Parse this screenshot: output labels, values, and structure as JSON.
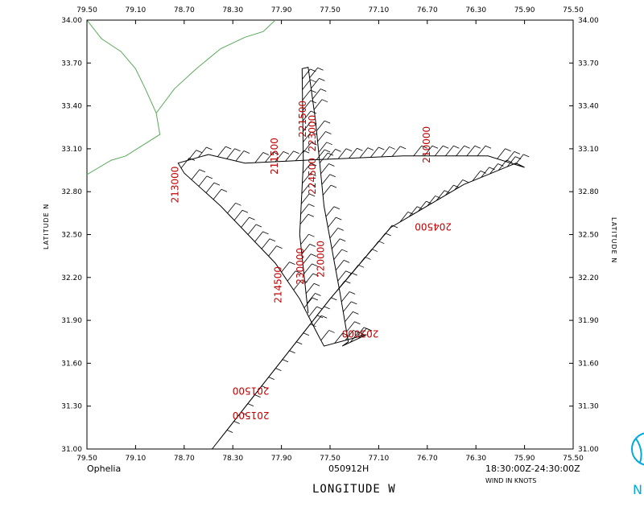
{
  "map": {
    "lon_ticks": [
      "79.50",
      "79.10",
      "78.70",
      "78.30",
      "77.90",
      "77.50",
      "77.10",
      "76.70",
      "76.30",
      "75.90",
      "75.50"
    ],
    "lat_ticks": [
      "31.00",
      "31.30",
      "31.60",
      "31.90",
      "32.20",
      "32.50",
      "32.80",
      "33.10",
      "33.40",
      "33.70",
      "34.00"
    ],
    "lon_range": [
      -79.5,
      -75.5
    ],
    "lat_range": [
      31.0,
      34.0
    ],
    "storm_name": "Ophelia",
    "date_label": "050912H",
    "time_range": "18:30:00Z-24:30:00Z",
    "units_label": "WIND IN KNOTS",
    "x_title": "LONGITUDE  W",
    "y_title_left": "LATITUDE  N",
    "y_title_right": "LATITUDE  N",
    "track_color": "#000000",
    "coast_color": "#5aa95a",
    "time_label_color": "#c00000",
    "logo_color": "#00aadd",
    "time_labels": [
      {
        "text": "201500",
        "lon": -78.0,
        "lat": 31.26,
        "rot": 180
      },
      {
        "text": "201500",
        "lon": -78.0,
        "lat": 31.43,
        "rot": 180
      },
      {
        "text": "203000",
        "lon": -77.1,
        "lat": 31.83,
        "rot": 180
      },
      {
        "text": "204500",
        "lon": -76.5,
        "lat": 32.58,
        "rot": 180
      },
      {
        "text": "210000",
        "lon": -76.68,
        "lat": 33.0,
        "rot": -90
      },
      {
        "text": "211500",
        "lon": -77.93,
        "lat": 32.92,
        "rot": -90
      },
      {
        "text": "213000",
        "lon": -78.75,
        "lat": 32.72,
        "rot": -90
      },
      {
        "text": "214500",
        "lon": -77.9,
        "lat": 32.02,
        "rot": -90
      },
      {
        "text": "220000",
        "lon": -77.55,
        "lat": 32.2,
        "rot": -90
      },
      {
        "text": "221500",
        "lon": -77.7,
        "lat": 33.18,
        "rot": -90
      },
      {
        "text": "223000",
        "lon": -77.62,
        "lat": 33.08,
        "rot": -90
      },
      {
        "text": "224500",
        "lon": -77.62,
        "lat": 32.78,
        "rot": -90
      },
      {
        "text": "230000",
        "lon": -77.72,
        "lat": 32.15,
        "rot": -90
      }
    ],
    "flight_track": [
      [
        -78.47,
        31.0
      ],
      [
        -77.5,
        32.05
      ],
      [
        -77.0,
        32.55
      ],
      [
        -76.4,
        32.85
      ],
      [
        -75.97,
        33.0
      ],
      [
        -75.9,
        32.97
      ],
      [
        -76.2,
        33.05
      ],
      [
        -76.9,
        33.05
      ],
      [
        -77.7,
        33.02
      ],
      [
        -78.2,
        33.0
      ],
      [
        -78.5,
        33.06
      ],
      [
        -78.75,
        33.0
      ],
      [
        -78.7,
        32.93
      ],
      [
        -78.4,
        32.7
      ],
      [
        -77.95,
        32.3
      ],
      [
        -77.75,
        32.05
      ],
      [
        -77.6,
        31.8
      ],
      [
        -77.55,
        31.72
      ],
      [
        -77.2,
        31.8
      ]
    ],
    "flight_track_2": [
      [
        -77.68,
        31.95
      ],
      [
        -77.75,
        32.5
      ],
      [
        -77.72,
        33.0
      ],
      [
        -77.73,
        33.66
      ],
      [
        -77.68,
        33.67
      ],
      [
        -77.62,
        33.3
      ],
      [
        -77.55,
        32.7
      ],
      [
        -77.42,
        32.1
      ],
      [
        -77.35,
        31.75
      ],
      [
        -77.4,
        31.72
      ],
      [
        -77.2,
        31.8
      ]
    ],
    "coastline": [
      [
        -79.5,
        34.0
      ],
      [
        -79.38,
        33.87
      ],
      [
        -79.22,
        33.78
      ],
      [
        -79.1,
        33.66
      ],
      [
        -79.02,
        33.52
      ],
      [
        -78.93,
        33.35
      ],
      [
        -78.9,
        33.2
      ],
      [
        -79.05,
        33.12
      ],
      [
        -79.18,
        33.05
      ],
      [
        -79.3,
        33.02
      ],
      [
        -79.4,
        32.97
      ],
      [
        -79.5,
        32.92
      ]
    ],
    "coastline_2": [
      [
        -78.93,
        33.35
      ],
      [
        -78.78,
        33.52
      ],
      [
        -78.6,
        33.66
      ],
      [
        -78.4,
        33.8
      ],
      [
        -78.2,
        33.88
      ],
      [
        -78.05,
        33.92
      ],
      [
        -77.95,
        34.0
      ]
    ]
  }
}
